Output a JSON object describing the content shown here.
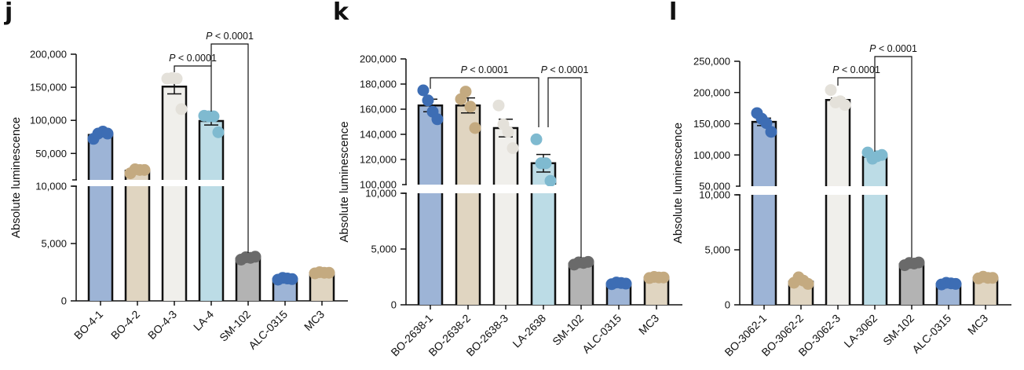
{
  "chart_data": [
    {
      "panel": "j",
      "type": "bar",
      "ylabel": "Absolute luminescence",
      "axis_break": {
        "lower_range": [
          0,
          10000
        ],
        "upper_range": [
          10000,
          200000
        ]
      },
      "lower_ticks": [
        0,
        5000,
        10000
      ],
      "lower_tick_labels": [
        "0",
        "5,000",
        "10,000"
      ],
      "upper_ticks": [
        50000,
        100000,
        150000,
        200000
      ],
      "upper_tick_labels": [
        "50,000",
        "100,000",
        "150,000",
        "200,000"
      ],
      "categories": [
        "BO-4-1",
        "BO-4-2",
        "BO-4-3",
        "LA-4",
        "SM-102",
        "ALC-0315",
        "MC3"
      ],
      "bar_colors": [
        "#9db4d6",
        "#e0d5c1",
        "#f0efeb",
        "#bcdce6",
        "#b3b3b3",
        "#9db4d6",
        "#e0d5c1"
      ],
      "point_colors": [
        "#3d6db4",
        "#c4aa80",
        "#e4e1da",
        "#7fbad0",
        "#6a6a6a",
        "#3d6db4",
        "#c4aa80"
      ],
      "values": [
        78000,
        24000,
        151000,
        99000,
        3700,
        1900,
        2450
      ],
      "errors": [
        0,
        0,
        11000,
        6000,
        0,
        0,
        0
      ],
      "points": [
        [
          72000,
          80000,
          83000,
          80000
        ],
        [
          20000,
          26000,
          25000,
          25000
        ],
        [
          163000,
          164000,
          163000,
          117000
        ],
        [
          107000,
          106000,
          106000,
          82000
        ],
        [
          3600,
          3800,
          3750,
          3850
        ],
        [
          1850,
          2000,
          1950,
          1900
        ],
        [
          2400,
          2500,
          2450,
          2450
        ]
      ],
      "annotations": [
        {
          "text_p": "P",
          "text_rest": " < 0.0001",
          "from": 2,
          "to": 3,
          "level": 1
        },
        {
          "text_p": "P",
          "text_rest": " < 0.0001",
          "from": 3,
          "to": 4,
          "level": 2
        }
      ]
    },
    {
      "panel": "k",
      "type": "bar",
      "ylabel": "Absolute luminescence",
      "axis_break": {
        "lower_range": [
          0,
          10000
        ],
        "upper_range": [
          100000,
          200000
        ]
      },
      "lower_ticks": [
        0,
        5000,
        10000
      ],
      "lower_tick_labels": [
        "0",
        "5,000",
        "10,000"
      ],
      "upper_ticks": [
        100000,
        120000,
        140000,
        160000,
        180000,
        200000
      ],
      "upper_tick_labels": [
        "100,000",
        "120,000",
        "140,000",
        "160,000",
        "180,000",
        "200,000"
      ],
      "categories": [
        "BO-2638-1",
        "BO-2638-2",
        "BO-2638-3",
        "LA-2638",
        "SM-102",
        "ALC-0315",
        "MC3"
      ],
      "bar_colors": [
        "#9db4d6",
        "#e0d5c1",
        "#f0efeb",
        "#bcdce6",
        "#b3b3b3",
        "#9db4d6",
        "#e0d5c1"
      ],
      "point_colors": [
        "#3d6db4",
        "#c4aa80",
        "#e4e1da",
        "#7fbad0",
        "#6a6a6a",
        "#3d6db4",
        "#c4aa80"
      ],
      "values": [
        163000,
        163000,
        145000,
        117000,
        3700,
        1900,
        2450
      ],
      "errors": [
        5000,
        6000,
        7000,
        7000,
        0,
        0,
        0
      ],
      "points": [
        [
          175000,
          167000,
          158000,
          152000
        ],
        [
          168000,
          174000,
          162000,
          145000
        ],
        [
          163000,
          148000,
          142000,
          129000
        ],
        [
          136000,
          117000,
          117000,
          103000
        ],
        [
          3600,
          3800,
          3750,
          3850
        ],
        [
          1850,
          2000,
          1950,
          1900
        ],
        [
          2400,
          2500,
          2450,
          2450
        ]
      ],
      "annotations": [
        {
          "text_p": "P",
          "text_rest": " < 0.0001",
          "from": 0,
          "to": 3,
          "level": 1,
          "to_offset": -1
        },
        {
          "text_p": "P",
          "text_rest": " < 0.0001",
          "from": 3,
          "to": 4,
          "level": 1,
          "from_offset": 1
        }
      ]
    },
    {
      "panel": "l",
      "type": "bar",
      "ylabel": "Absolute luminescence",
      "axis_break": {
        "lower_range": [
          0,
          10000
        ],
        "upper_range": [
          50000,
          250000
        ]
      },
      "lower_ticks": [
        0,
        5000,
        10000
      ],
      "lower_tick_labels": [
        "0",
        "5,000",
        "10,000"
      ],
      "upper_ticks": [
        50000,
        100000,
        150000,
        200000,
        250000
      ],
      "upper_tick_labels": [
        "50,000",
        "100,000",
        "150,000",
        "200,000",
        "250,000"
      ],
      "categories": [
        "BO-3062-1",
        "BO-3062-2",
        "BO-3062-3",
        "LA-3062",
        "SM-102",
        "ALC-0315",
        "MC3"
      ],
      "bar_colors": [
        "#9db4d6",
        "#e0d5c1",
        "#f0efeb",
        "#bcdce6",
        "#b3b3b3",
        "#9db4d6",
        "#e0d5c1"
      ],
      "point_colors": [
        "#3d6db4",
        "#c4aa80",
        "#e4e1da",
        "#7fbad0",
        "#6a6a6a",
        "#3d6db4",
        "#c4aa80"
      ],
      "values": [
        153000,
        2100,
        188000,
        97000,
        3700,
        1900,
        2450
      ],
      "errors": [
        6000,
        0,
        3000,
        4000,
        0,
        0,
        0
      ],
      "points": [
        [
          167000,
          158000,
          151000,
          137000
        ],
        [
          2000,
          2500,
          2200,
          1900
        ],
        [
          204000,
          184000,
          186000,
          180000
        ],
        [
          104000,
          94000,
          98000,
          100000
        ],
        [
          3600,
          3800,
          3750,
          3850
        ],
        [
          1850,
          2000,
          1950,
          1900
        ],
        [
          2400,
          2550,
          2450,
          2450
        ]
      ],
      "annotations": [
        {
          "text_p": "P",
          "text_rest": " < 0.0001",
          "from": 2,
          "to": 3,
          "level": 1
        },
        {
          "text_p": "P",
          "text_rest": " < 0.0001",
          "from": 3,
          "to": 4,
          "level": 2
        }
      ]
    }
  ]
}
